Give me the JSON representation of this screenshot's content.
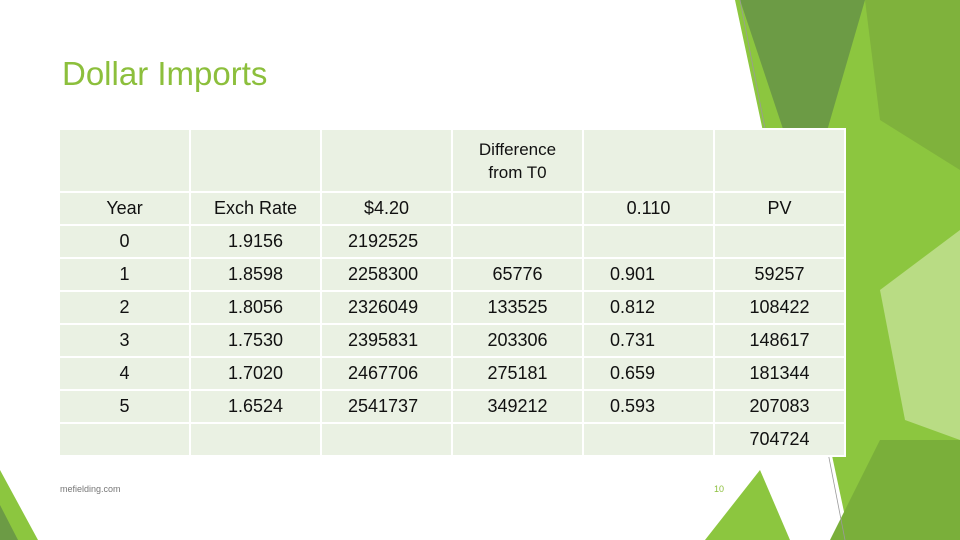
{
  "title": "Dollar Imports",
  "header": {
    "difference_line1": "Difference",
    "difference_line2": "from  T0"
  },
  "row_labels": {
    "year": "Year",
    "exch_rate": "Exch Rate",
    "price": "$4.20",
    "discount": "0.110",
    "pv": "PV"
  },
  "rows": [
    {
      "year": "0",
      "rate": "1.9156",
      "amount": "2192525",
      "diff": "",
      "factor": "",
      "pv": ""
    },
    {
      "year": "1",
      "rate": "1.8598",
      "amount": "2258300",
      "diff": "65776",
      "factor": "0.901",
      "pv": "59257"
    },
    {
      "year": "2",
      "rate": "1.8056",
      "amount": "2326049",
      "diff": "133525",
      "factor": "0.812",
      "pv": "108422"
    },
    {
      "year": "3",
      "rate": "1.7530",
      "amount": "2395831",
      "diff": "203306",
      "factor": "0.731",
      "pv": "148617"
    },
    {
      "year": "4",
      "rate": "1.7020",
      "amount": "2467706",
      "diff": "275181",
      "factor": "0.659",
      "pv": "181344"
    },
    {
      "year": "5",
      "rate": "1.6524",
      "amount": "2541737",
      "diff": "349212",
      "factor": "0.593",
      "pv": "207083"
    }
  ],
  "total_pv": "704724",
  "footer": "mefielding.com",
  "page_number": "10",
  "colors": {
    "accent_green": "#8cbf3c",
    "dark_green": "#6a9a3a",
    "table_fill": "#eaf1e3"
  }
}
